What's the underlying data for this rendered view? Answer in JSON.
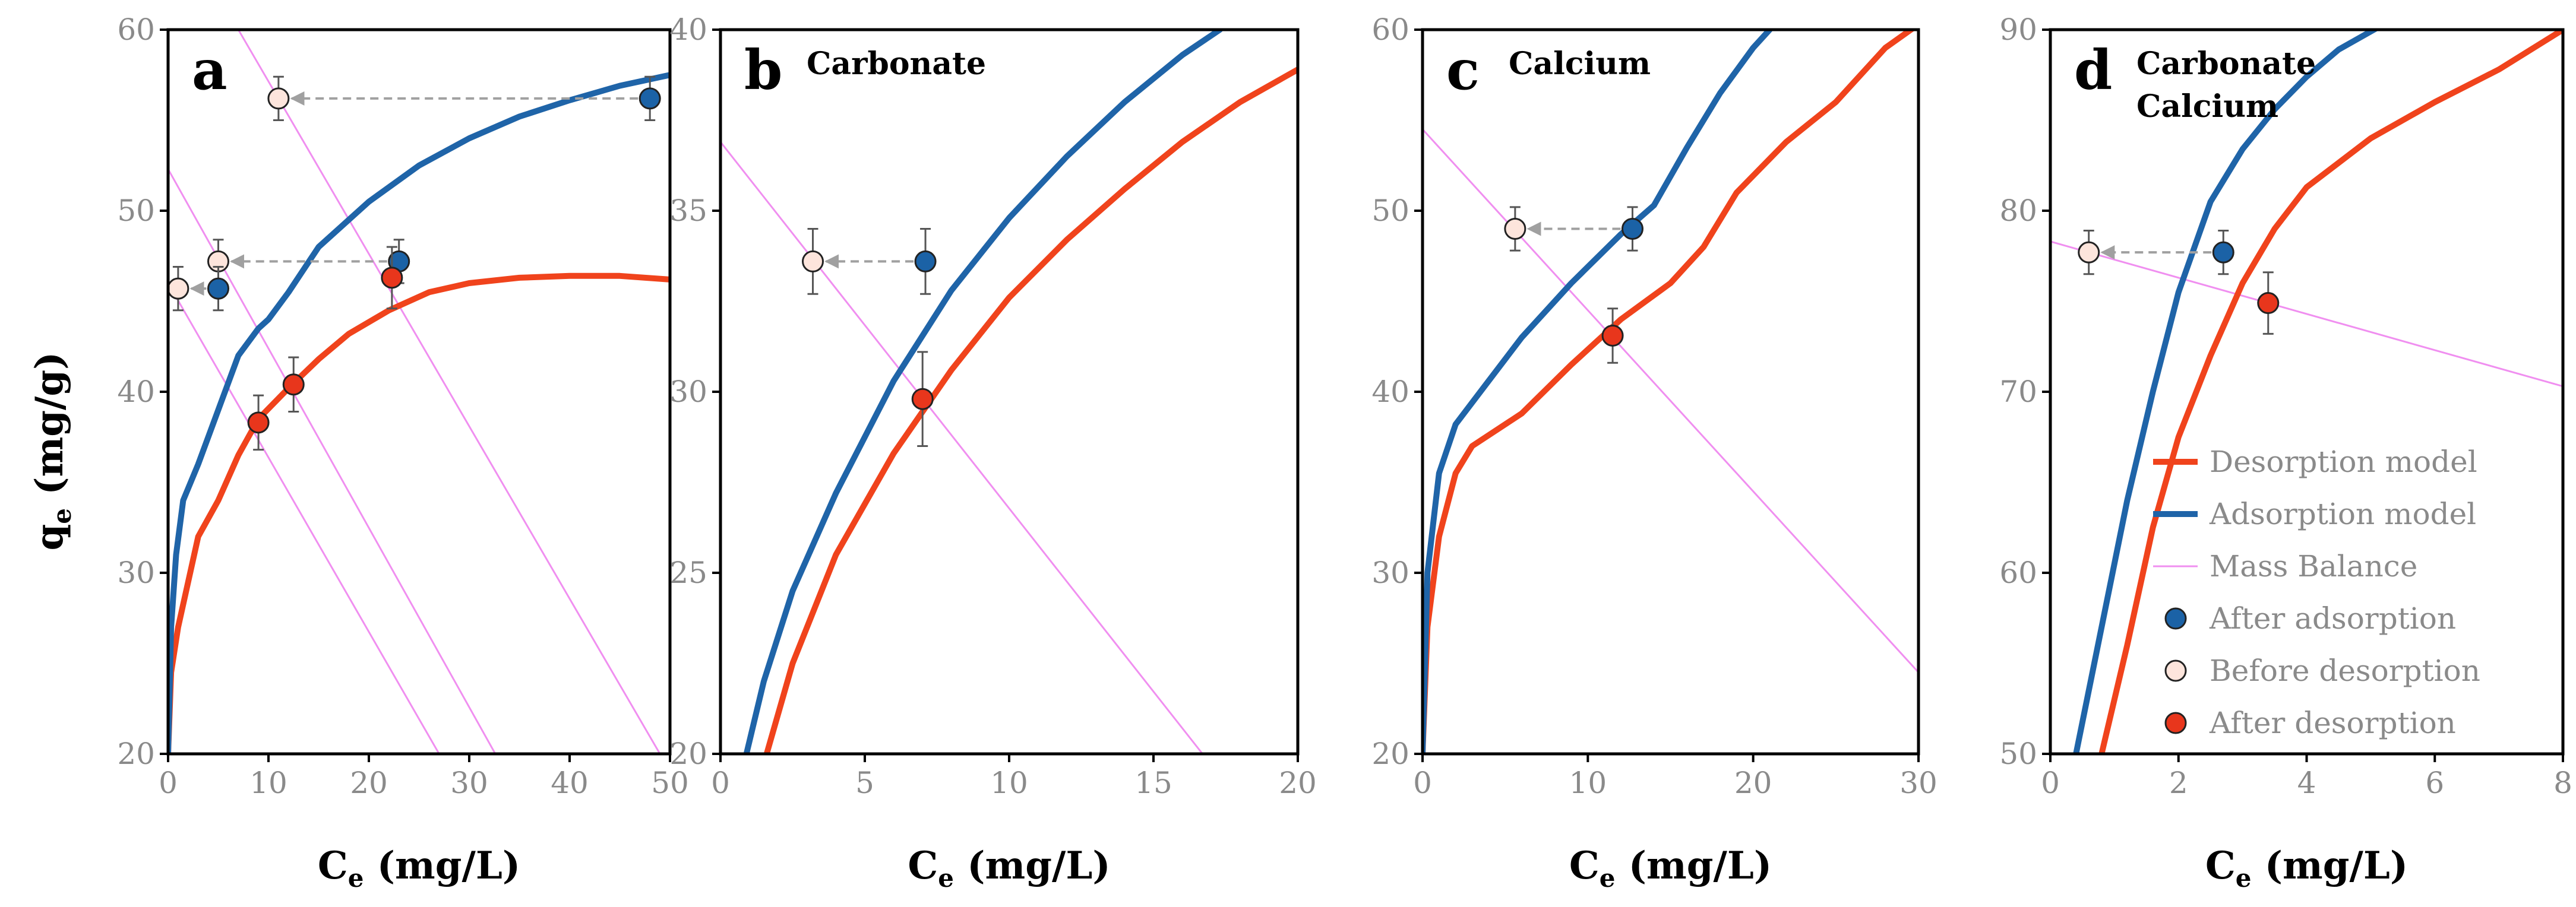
{
  "figure": {
    "ylabel_main": "q",
    "ylabel_sub": "e",
    "ylabel_unit": " (mg/g)",
    "xlabel_main": "C",
    "xlabel_sub": "e",
    "xlabel_unit": " (mg/L)"
  },
  "legend": {
    "placement": "bottom-right of panel d",
    "items": [
      {
        "label": "Desorption model",
        "kind": "line",
        "color": "#f0431c",
        "width": "thick"
      },
      {
        "label": "Adsorption model",
        "kind": "line",
        "color": "#1f64a8",
        "width": "thick"
      },
      {
        "label": "Mass Balance",
        "kind": "line",
        "color": "#f08ff0",
        "width": "thin"
      },
      {
        "label": "After adsorption",
        "kind": "marker",
        "color": "#1b62a6"
      },
      {
        "label": "Before desorption",
        "kind": "marker",
        "color": "#fde5dc"
      },
      {
        "label": "After desorption",
        "kind": "marker",
        "color": "#e8361c"
      }
    ]
  },
  "colors": {
    "desorption": "#f0431c",
    "adsorption": "#1f64a8",
    "mass_balance": "#f08ff0",
    "after_adsorption": "#1b62a6",
    "before_desorption": "#fde5dc",
    "after_desorption": "#e8361c",
    "arrow": "#a0a0a0",
    "errorbar": "#555555"
  },
  "chart_data": [
    {
      "panel": "a",
      "subtitle": [],
      "type": "scatter",
      "xlim": [
        0,
        50
      ],
      "ylim": [
        20,
        60
      ],
      "xticks": [
        0,
        10,
        20,
        30,
        40,
        50
      ],
      "yticks": [
        20,
        30,
        40,
        50,
        60
      ],
      "adsorption_model": [
        [
          0,
          20
        ],
        [
          0.3,
          27
        ],
        [
          0.8,
          31
        ],
        [
          1.5,
          34
        ],
        [
          3,
          36
        ],
        [
          5,
          39
        ],
        [
          7,
          42
        ],
        [
          9,
          43.5
        ],
        [
          10,
          44
        ],
        [
          12,
          45.5
        ],
        [
          15,
          48
        ],
        [
          20,
          50.5
        ],
        [
          25,
          52.5
        ],
        [
          30,
          54
        ],
        [
          35,
          55.2
        ],
        [
          40,
          56.1
        ],
        [
          45,
          56.9
        ],
        [
          50,
          57.5
        ]
      ],
      "desorption_model": [
        [
          0,
          20
        ],
        [
          0.3,
          24.5
        ],
        [
          1,
          27
        ],
        [
          2,
          29.5
        ],
        [
          3,
          32
        ],
        [
          5,
          34
        ],
        [
          7,
          36.5
        ],
        [
          9,
          38.5
        ],
        [
          12,
          40.2
        ],
        [
          15,
          41.8
        ],
        [
          18,
          43.2
        ],
        [
          22,
          44.5
        ],
        [
          26,
          45.5
        ],
        [
          30,
          46
        ],
        [
          35,
          46.3
        ],
        [
          40,
          46.4
        ],
        [
          45,
          46.4
        ],
        [
          50,
          46.2
        ]
      ],
      "mass_balance": [
        [
          [
            0,
            46
          ],
          [
            27,
            20
          ]
        ],
        [
          [
            0,
            52.3
          ],
          [
            32.6,
            20
          ]
        ],
        [
          [
            7,
            60
          ],
          [
            49,
            20
          ]
        ]
      ],
      "after_adsorption": [
        {
          "x": 5,
          "y": 45.7,
          "err": 1.2
        },
        {
          "x": 23,
          "y": 47.2,
          "err": 1.2
        },
        {
          "x": 48,
          "y": 56.2,
          "err": 1.2
        }
      ],
      "before_desorption": [
        {
          "x": 1,
          "y": 45.7,
          "err": 1.2
        },
        {
          "x": 5,
          "y": 47.2,
          "err": 1.2
        },
        {
          "x": 11,
          "y": 56.2,
          "err": 1.2
        }
      ],
      "after_desorption": [
        {
          "x": 9,
          "y": 38.3,
          "err": 1.5
        },
        {
          "x": 12.5,
          "y": 40.4,
          "err": 1.5
        },
        {
          "x": 22.3,
          "y": 46.3,
          "err": 1.7
        }
      ],
      "arrows": [
        {
          "from": [
            48,
            56.2
          ],
          "to": [
            11,
            56.2
          ]
        },
        {
          "from": [
            23,
            47.2
          ],
          "to": [
            5,
            47.2
          ]
        },
        {
          "from": [
            5,
            45.7
          ],
          "to": [
            1,
            45.7
          ]
        }
      ]
    },
    {
      "panel": "b",
      "subtitle": [
        "Carbonate"
      ],
      "type": "scatter",
      "xlim": [
        0,
        20
      ],
      "ylim": [
        20,
        40
      ],
      "xticks": [
        0,
        5,
        10,
        15,
        20
      ],
      "yticks": [
        20,
        25,
        30,
        35,
        40
      ],
      "adsorption_model": [
        [
          0.9,
          20
        ],
        [
          1.5,
          22
        ],
        [
          2.5,
          24.5
        ],
        [
          4,
          27.2
        ],
        [
          6,
          30.3
        ],
        [
          8,
          32.8
        ],
        [
          10,
          34.8
        ],
        [
          12,
          36.5
        ],
        [
          14,
          38
        ],
        [
          16,
          39.3
        ],
        [
          17.3,
          40
        ]
      ],
      "desorption_model": [
        [
          1.6,
          20
        ],
        [
          2.5,
          22.5
        ],
        [
          4,
          25.5
        ],
        [
          6,
          28.3
        ],
        [
          8,
          30.6
        ],
        [
          10,
          32.6
        ],
        [
          12,
          34.2
        ],
        [
          14,
          35.6
        ],
        [
          16,
          36.9
        ],
        [
          18,
          38
        ],
        [
          20,
          38.9
        ]
      ],
      "mass_balance": [
        [
          [
            0,
            36.9
          ],
          [
            16.7,
            20
          ]
        ]
      ],
      "after_adsorption": [
        {
          "x": 7.1,
          "y": 33.6,
          "err": 0.9
        }
      ],
      "before_desorption": [
        {
          "x": 3.2,
          "y": 33.6,
          "err": 0.9
        }
      ],
      "after_desorption": [
        {
          "x": 7,
          "y": 29.8,
          "err": 1.3
        }
      ],
      "arrows": [
        {
          "from": [
            7.1,
            33.6
          ],
          "to": [
            3.2,
            33.6
          ]
        }
      ]
    },
    {
      "panel": "c",
      "subtitle": [
        "Calcium"
      ],
      "type": "scatter",
      "xlim": [
        0,
        30
      ],
      "ylim": [
        20,
        60
      ],
      "xticks": [
        0,
        10,
        20,
        30
      ],
      "yticks": [
        20,
        30,
        40,
        50,
        60
      ],
      "adsorption_model": [
        [
          0,
          20
        ],
        [
          0.3,
          30
        ],
        [
          1,
          35.5
        ],
        [
          2,
          38.2
        ],
        [
          4,
          40.6
        ],
        [
          6,
          43
        ],
        [
          9,
          46
        ],
        [
          12,
          48.7
        ],
        [
          14,
          50.3
        ],
        [
          16,
          53.5
        ],
        [
          18,
          56.5
        ],
        [
          20,
          59
        ],
        [
          21,
          60
        ]
      ],
      "desorption_model": [
        [
          0,
          20
        ],
        [
          0.3,
          27
        ],
        [
          1,
          32
        ],
        [
          2,
          35.5
        ],
        [
          3,
          37
        ],
        [
          6,
          38.8
        ],
        [
          9,
          41.5
        ],
        [
          12,
          44
        ],
        [
          15,
          46
        ],
        [
          17,
          48
        ],
        [
          19,
          51
        ],
        [
          22,
          53.8
        ],
        [
          25,
          56
        ],
        [
          28,
          59
        ],
        [
          30,
          60.3
        ]
      ],
      "mass_balance": [
        [
          [
            0,
            54.5
          ],
          [
            30,
            24.5
          ]
        ]
      ],
      "after_adsorption": [
        {
          "x": 12.7,
          "y": 49,
          "err": 1.2
        }
      ],
      "before_desorption": [
        {
          "x": 5.6,
          "y": 49,
          "err": 1.2
        }
      ],
      "after_desorption": [
        {
          "x": 11.5,
          "y": 43.1,
          "err": 1.5
        }
      ],
      "arrows": [
        {
          "from": [
            12.7,
            49
          ],
          "to": [
            5.6,
            49
          ]
        }
      ]
    },
    {
      "panel": "d",
      "subtitle": [
        "Carbonate",
        "Calcium"
      ],
      "type": "scatter",
      "xlim": [
        0,
        8
      ],
      "ylim": [
        50,
        90
      ],
      "xticks": [
        0,
        2,
        4,
        6,
        8
      ],
      "yticks": [
        50,
        60,
        70,
        80,
        90
      ],
      "adsorption_model": [
        [
          0.4,
          50
        ],
        [
          0.8,
          57
        ],
        [
          1.2,
          64
        ],
        [
          1.6,
          70
        ],
        [
          2,
          75.5
        ],
        [
          2.5,
          80.5
        ],
        [
          3,
          83.4
        ],
        [
          3.5,
          85.6
        ],
        [
          4,
          87.4
        ],
        [
          4.5,
          88.9
        ],
        [
          5.3,
          90.5
        ]
      ],
      "desorption_model": [
        [
          0.8,
          50
        ],
        [
          1.2,
          56
        ],
        [
          1.6,
          62.5
        ],
        [
          2,
          67.5
        ],
        [
          2.5,
          72
        ],
        [
          3,
          76
        ],
        [
          3.5,
          79
        ],
        [
          4,
          81.3
        ],
        [
          5,
          84
        ],
        [
          6,
          86
        ],
        [
          7,
          87.8
        ],
        [
          8,
          90
        ]
      ],
      "mass_balance": [
        [
          [
            0,
            78.3
          ],
          [
            8,
            70.3
          ]
        ]
      ],
      "after_adsorption": [
        {
          "x": 2.7,
          "y": 77.7,
          "err": 1.2
        }
      ],
      "before_desorption": [
        {
          "x": 0.6,
          "y": 77.7,
          "err": 1.2
        }
      ],
      "after_desorption": [
        {
          "x": 3.4,
          "y": 74.9,
          "err": 1.7
        }
      ],
      "arrows": [
        {
          "from": [
            2.7,
            77.7
          ],
          "to": [
            0.6,
            77.7
          ]
        }
      ]
    }
  ]
}
